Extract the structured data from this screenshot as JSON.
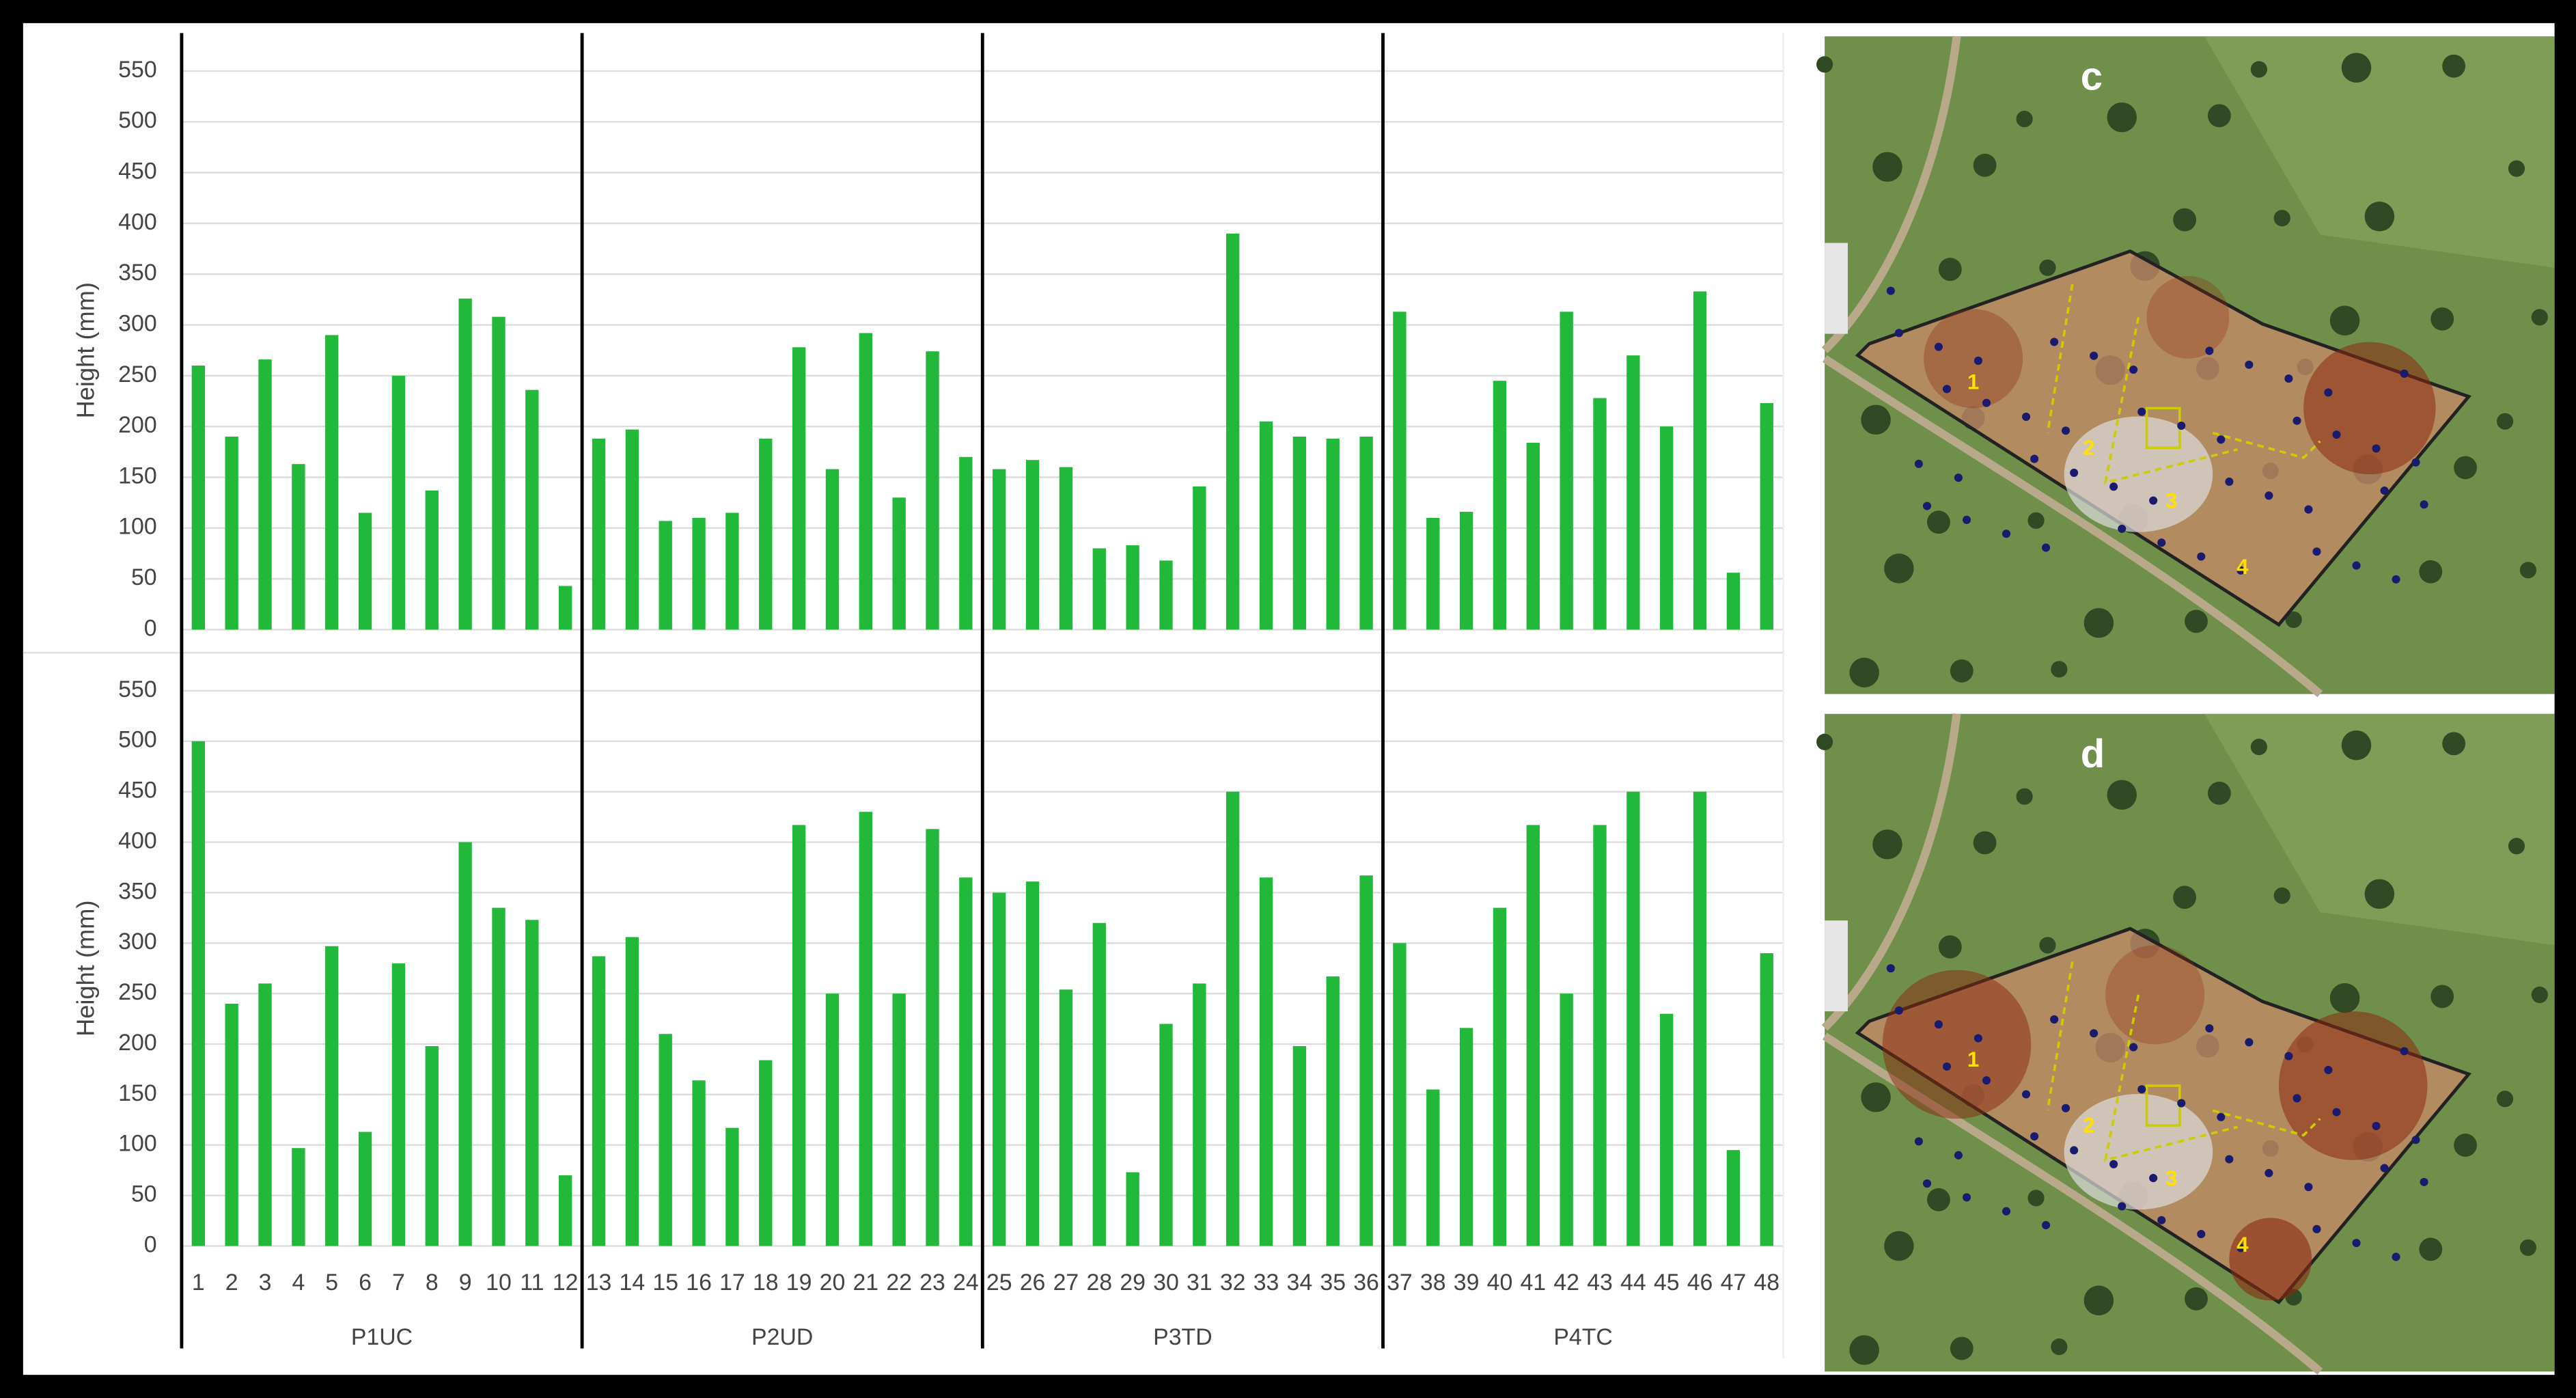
{
  "chart_data": [
    {
      "type": "bar",
      "y_label": "Height (mm)",
      "color": "#22b83a",
      "ylim": [
        0,
        550
      ],
      "yticks": [
        0,
        50,
        100,
        150,
        200,
        250,
        300,
        350,
        400,
        450,
        500,
        550
      ],
      "grid": true,
      "values": [
        260,
        190,
        266,
        163,
        290,
        115,
        250,
        137,
        326,
        308,
        236,
        43,
        188,
        197,
        107,
        110,
        115,
        188,
        278,
        158,
        292,
        130,
        274,
        170,
        158,
        167,
        160,
        80,
        83,
        68,
        141,
        390,
        205,
        190,
        188,
        190,
        313,
        110,
        116,
        245,
        184,
        313,
        228,
        270,
        200,
        333,
        56,
        223
      ]
    },
    {
      "type": "bar",
      "y_label": "Height (mm)",
      "color": "#22b83a",
      "ylim": [
        0,
        550
      ],
      "yticks": [
        0,
        50,
        100,
        150,
        200,
        250,
        300,
        350,
        400,
        450,
        500,
        550
      ],
      "grid": true,
      "categories": [
        "1",
        "2",
        "3",
        "4",
        "5",
        "6",
        "7",
        "8",
        "9",
        "10",
        "11",
        "12",
        "13",
        "14",
        "15",
        "16",
        "17",
        "18",
        "19",
        "20",
        "21",
        "22",
        "23",
        "24",
        "25",
        "26",
        "27",
        "28",
        "29",
        "30",
        "31",
        "32",
        "33",
        "34",
        "35",
        "36",
        "37",
        "38",
        "39",
        "40",
        "41",
        "42",
        "43",
        "44",
        "45",
        "46",
        "47",
        "48"
      ],
      "groups": [
        "P1UC",
        "P2UD",
        "P3TD",
        "P4TC"
      ],
      "values": [
        500,
        240,
        260,
        97,
        297,
        113,
        280,
        198,
        400,
        335,
        323,
        70,
        287,
        306,
        210,
        164,
        117,
        184,
        417,
        250,
        430,
        250,
        413,
        365,
        350,
        361,
        254,
        320,
        73,
        220,
        260,
        450,
        365,
        198,
        267,
        367,
        300,
        155,
        216,
        335,
        417,
        250,
        417,
        450,
        230,
        450,
        95,
        290
      ]
    }
  ],
  "maps": [
    {
      "label": "c",
      "zones": [
        "1",
        "2",
        "3",
        "4"
      ]
    },
    {
      "label": "d",
      "zones": [
        "1",
        "2",
        "3",
        "4"
      ]
    }
  ]
}
